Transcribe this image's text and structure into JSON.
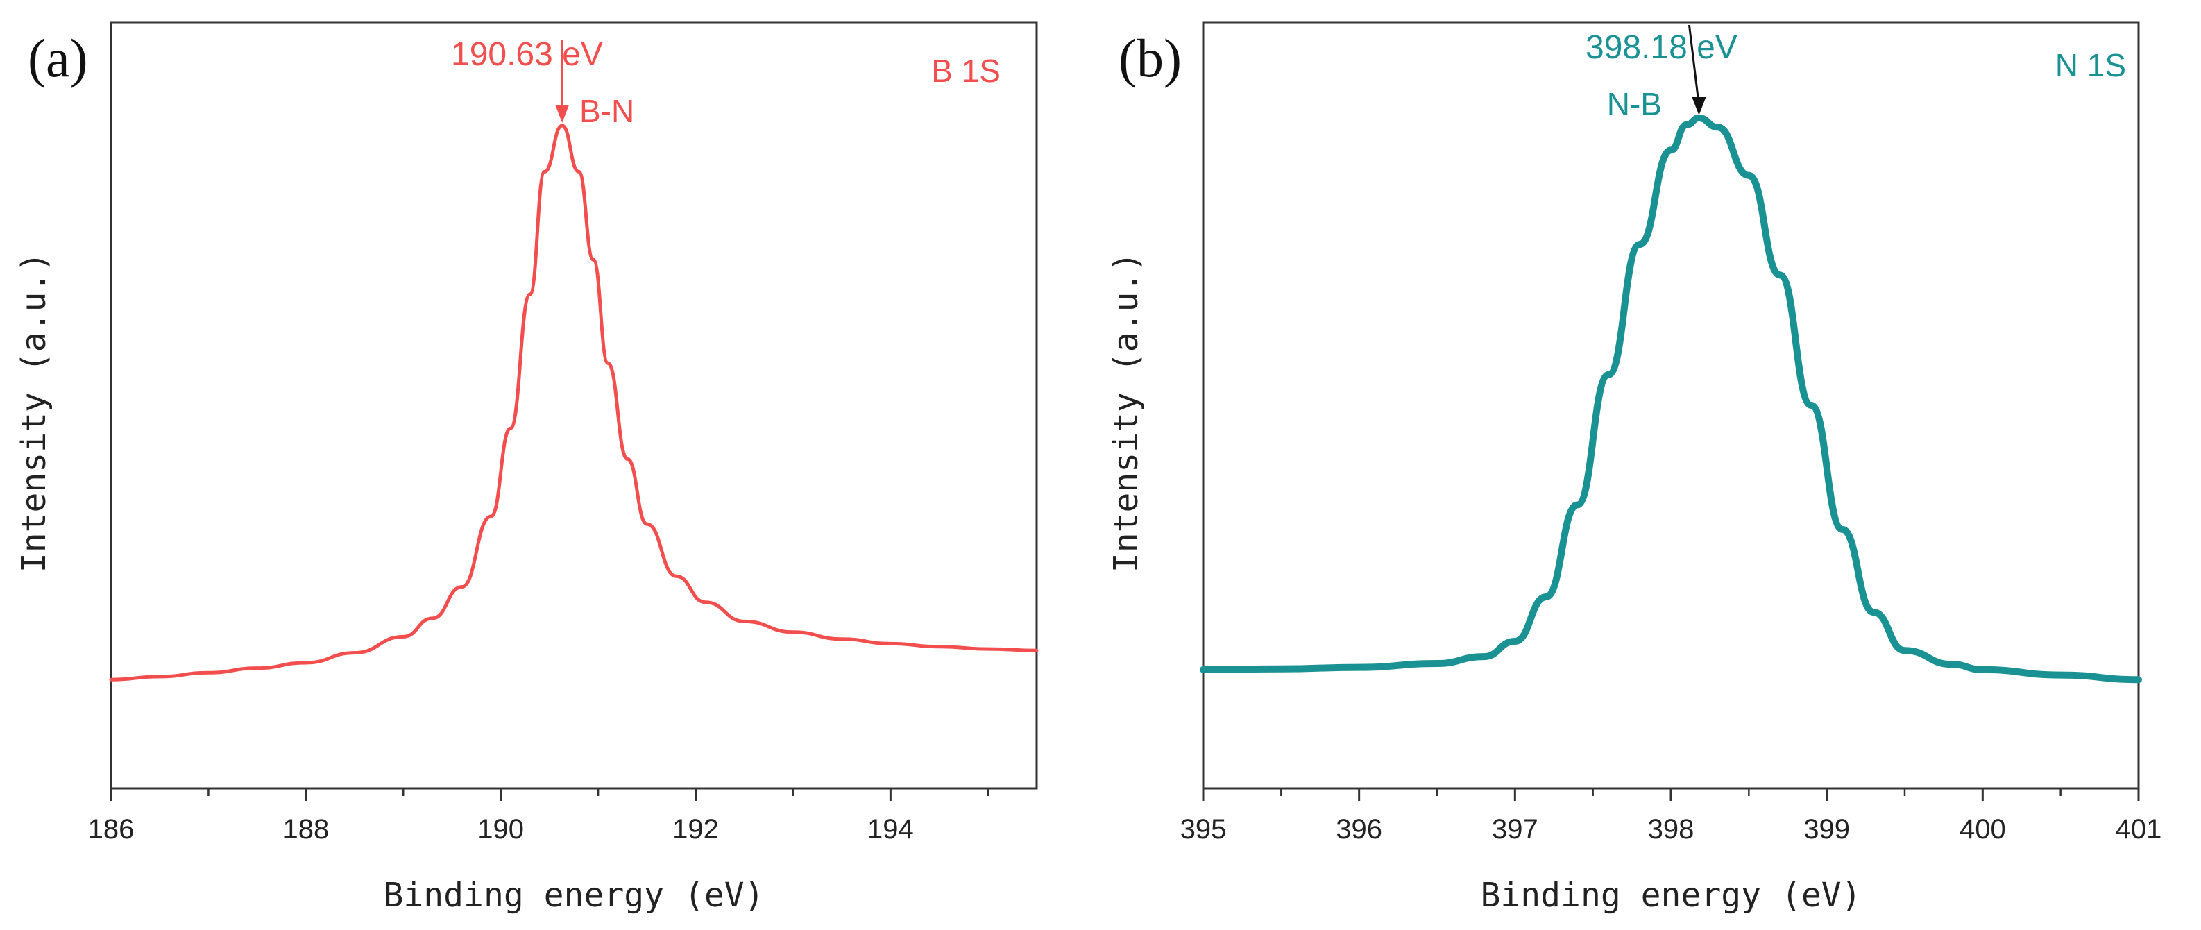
{
  "chart_data": [
    {
      "panel_label": "(a)",
      "type": "line",
      "title": "B 1S",
      "xlabel": "Binding energy (eV)",
      "ylabel": "Intensity (a.u.)",
      "xlim": [
        186,
        195.5
      ],
      "ylim": [
        0,
        1
      ],
      "xticks": [
        186,
        188,
        190,
        192,
        194
      ],
      "yticks": [],
      "grid": false,
      "color": "#f24e4e",
      "x": [
        186,
        186.5,
        187,
        187.5,
        188,
        188.5,
        189,
        189.3,
        189.6,
        189.9,
        190.1,
        190.3,
        190.45,
        190.63,
        190.8,
        190.95,
        191.1,
        191.3,
        191.5,
        191.8,
        192.1,
        192.5,
        193,
        193.5,
        194,
        194.5,
        195,
        195.5
      ],
      "y": [
        0.142,
        0.146,
        0.151,
        0.157,
        0.164,
        0.177,
        0.198,
        0.222,
        0.263,
        0.355,
        0.47,
        0.645,
        0.805,
        0.865,
        0.805,
        0.69,
        0.555,
        0.43,
        0.345,
        0.277,
        0.243,
        0.218,
        0.204,
        0.195,
        0.189,
        0.185,
        0.182,
        0.18
      ],
      "annotations": [
        {
          "text": "190.63 eV",
          "x": 190.63,
          "y": 0.865,
          "arrow": true
        },
        {
          "text": "B-N",
          "x": 190.63,
          "y": 0.865
        }
      ]
    },
    {
      "panel_label": "(b)",
      "type": "line",
      "title": "N 1S",
      "xlabel": "Binding energy (eV)",
      "ylabel": "Intensity (a.u.)",
      "xlim": [
        395,
        401
      ],
      "ylim": [
        0,
        1
      ],
      "xticks": [
        395,
        396,
        397,
        398,
        399,
        400,
        401
      ],
      "yticks": [],
      "grid": false,
      "color": "#1a9193",
      "x": [
        395,
        395.5,
        396,
        396.5,
        396.8,
        397,
        397.2,
        397.4,
        397.6,
        397.8,
        398,
        398.1,
        398.18,
        398.3,
        398.5,
        398.7,
        398.9,
        399.1,
        399.3,
        399.5,
        399.8,
        400,
        400.5,
        401
      ],
      "y": [
        0.155,
        0.156,
        0.158,
        0.163,
        0.172,
        0.192,
        0.25,
        0.37,
        0.54,
        0.71,
        0.833,
        0.866,
        0.875,
        0.863,
        0.8,
        0.67,
        0.5,
        0.338,
        0.23,
        0.18,
        0.162,
        0.155,
        0.148,
        0.142
      ],
      "annotations": [
        {
          "text": "398.18 eV",
          "x": 398.18,
          "y": 0.875,
          "arrow": true
        },
        {
          "text": "N-B",
          "x": 398.18,
          "y": 0.875
        }
      ]
    }
  ]
}
